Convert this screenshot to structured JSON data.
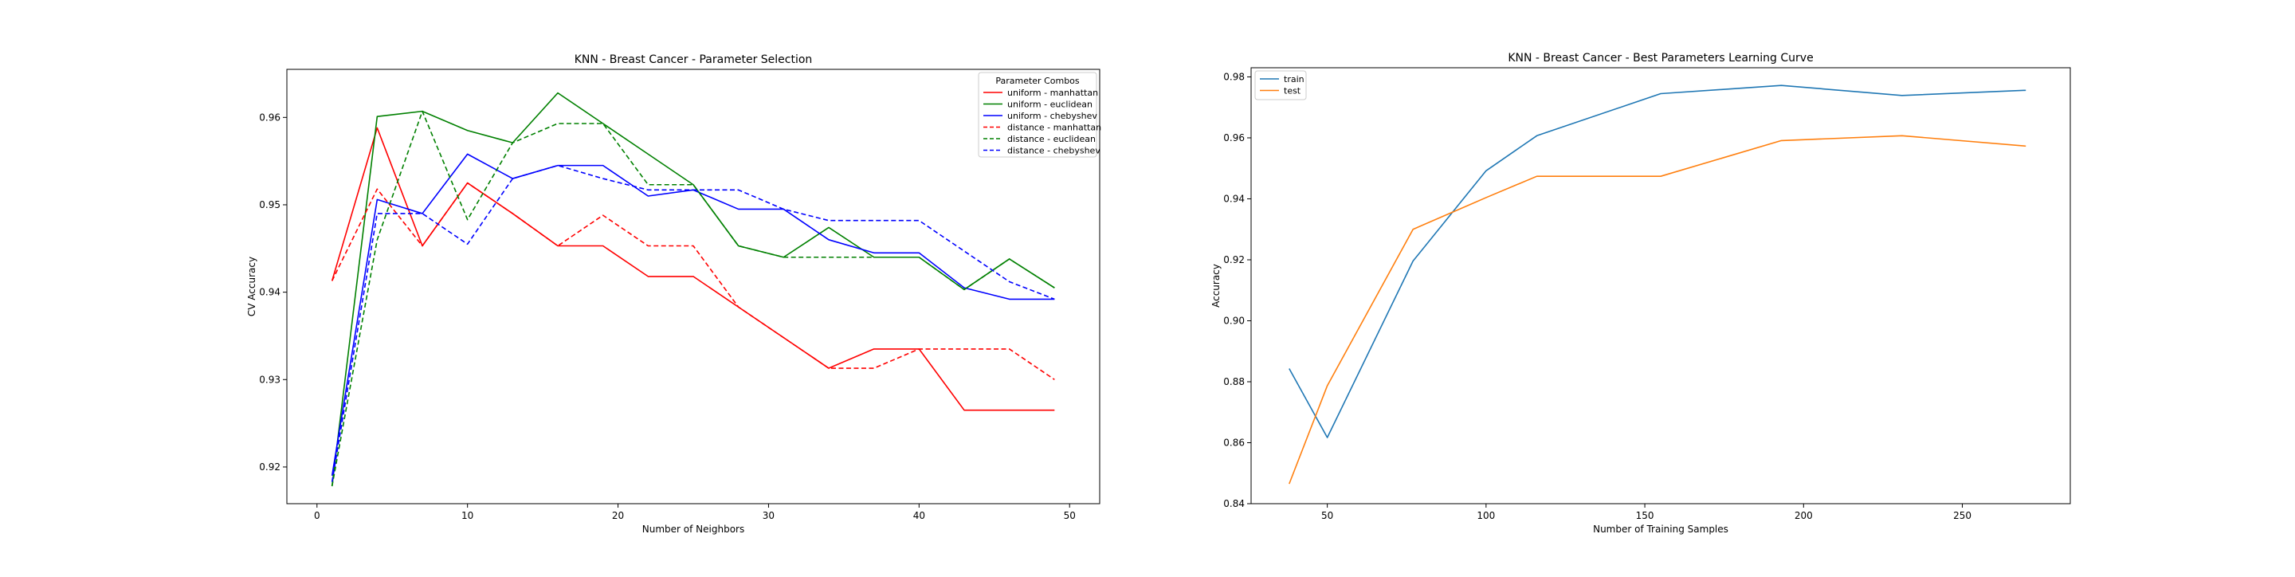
{
  "chart_data": [
    {
      "type": "line",
      "title": "KNN - Breast Cancer - Parameter Selection",
      "xlabel": "Number of Neighbors",
      "ylabel": "CV Accuracy",
      "xlim": [
        -2,
        52
      ],
      "ylim": [
        0.9158,
        0.9655
      ],
      "xticks": [
        0,
        10,
        20,
        30,
        40,
        50
      ],
      "yticks": [
        0.92,
        0.93,
        0.94,
        0.95,
        0.96
      ],
      "ytick_labels": [
        "0.92",
        "0.93",
        "0.94",
        "0.95",
        "0.96"
      ],
      "legend_title": "Parameter Combos",
      "legend_position": "top-right",
      "grid": false,
      "x": [
        1,
        4,
        7,
        10,
        13,
        16,
        19,
        22,
        25,
        28,
        31,
        34,
        37,
        40,
        43,
        46,
        49
      ],
      "series": [
        {
          "name": "uniform - manhattan",
          "color": "#ff0000",
          "dash": false,
          "values": [
            0.9413,
            0.9588,
            0.9453,
            0.9525,
            0.949,
            0.9453,
            0.9453,
            0.9418,
            0.9418,
            0.9383,
            0.9348,
            0.9313,
            0.9335,
            0.9335,
            0.9265,
            0.9265,
            0.9265
          ]
        },
        {
          "name": "uniform - euclidean",
          "color": "#008000",
          "dash": false,
          "values": [
            0.9178,
            0.9601,
            0.9607,
            0.9585,
            0.9571,
            0.9628,
            0.9593,
            0.9558,
            0.9523,
            0.9453,
            0.944,
            0.9474,
            0.944,
            0.944,
            0.9403,
            0.9438,
            0.9405
          ]
        },
        {
          "name": "uniform - chebyshev",
          "color": "#0000ff",
          "dash": false,
          "values": [
            0.919,
            0.9506,
            0.949,
            0.9558,
            0.953,
            0.9545,
            0.9545,
            0.951,
            0.9517,
            0.9495,
            0.9495,
            0.946,
            0.9445,
            0.9445,
            0.9405,
            0.9392,
            0.9392
          ]
        },
        {
          "name": "distance - manhattan",
          "color": "#ff0000",
          "dash": true,
          "values": [
            0.9413,
            0.9518,
            0.9453,
            0.9525,
            0.949,
            0.9453,
            0.9488,
            0.9453,
            0.9453,
            0.9383,
            0.9348,
            0.9313,
            0.9313,
            0.9335,
            0.9335,
            0.9335,
            0.93
          ]
        },
        {
          "name": "distance - euclidean",
          "color": "#008000",
          "dash": true,
          "values": [
            0.9178,
            0.946,
            0.9607,
            0.9483,
            0.9571,
            0.9593,
            0.9593,
            0.9523,
            0.9523,
            0.9453,
            0.944,
            0.944,
            0.944,
            0.944,
            0.9403,
            0.9438,
            0.9405
          ]
        },
        {
          "name": "distance - chebyshev",
          "color": "#0000ff",
          "dash": true,
          "values": [
            0.9183,
            0.949,
            0.949,
            0.9455,
            0.953,
            0.9545,
            0.953,
            0.9517,
            0.9517,
            0.9517,
            0.9495,
            0.9482,
            0.9482,
            0.9482,
            0.9447,
            0.9412,
            0.9392
          ]
        }
      ]
    },
    {
      "type": "line",
      "title": "KNN - Breast Cancer -  Best Parameters Learning Curve",
      "xlabel": "Number of Training Samples",
      "ylabel": "Accuracy",
      "xlim": [
        26,
        284
      ],
      "ylim": [
        0.84,
        0.983
      ],
      "xticks": [
        50,
        100,
        150,
        200,
        250
      ],
      "yticks": [
        0.84,
        0.86,
        0.88,
        0.9,
        0.92,
        0.94,
        0.96,
        0.98
      ],
      "ytick_labels": [
        "0.84",
        "0.86",
        "0.88",
        "0.90",
        "0.92",
        "0.94",
        "0.96",
        "0.98"
      ],
      "legend_position": "top-left",
      "grid": false,
      "x": [
        38,
        50,
        77,
        100,
        116,
        155,
        193,
        231,
        270
      ],
      "series": [
        {
          "name": "train",
          "color": "#1f77b4",
          "dash": false,
          "values": [
            0.8843,
            0.8617,
            0.9196,
            0.9492,
            0.9607,
            0.9745,
            0.9772,
            0.9739,
            0.9756
          ]
        },
        {
          "name": "test",
          "color": "#ff7f0e",
          "dash": false,
          "values": [
            0.8465,
            0.8787,
            0.93,
            0.9404,
            0.9474,
            0.9474,
            0.9591,
            0.9607,
            0.9573
          ]
        }
      ]
    }
  ]
}
